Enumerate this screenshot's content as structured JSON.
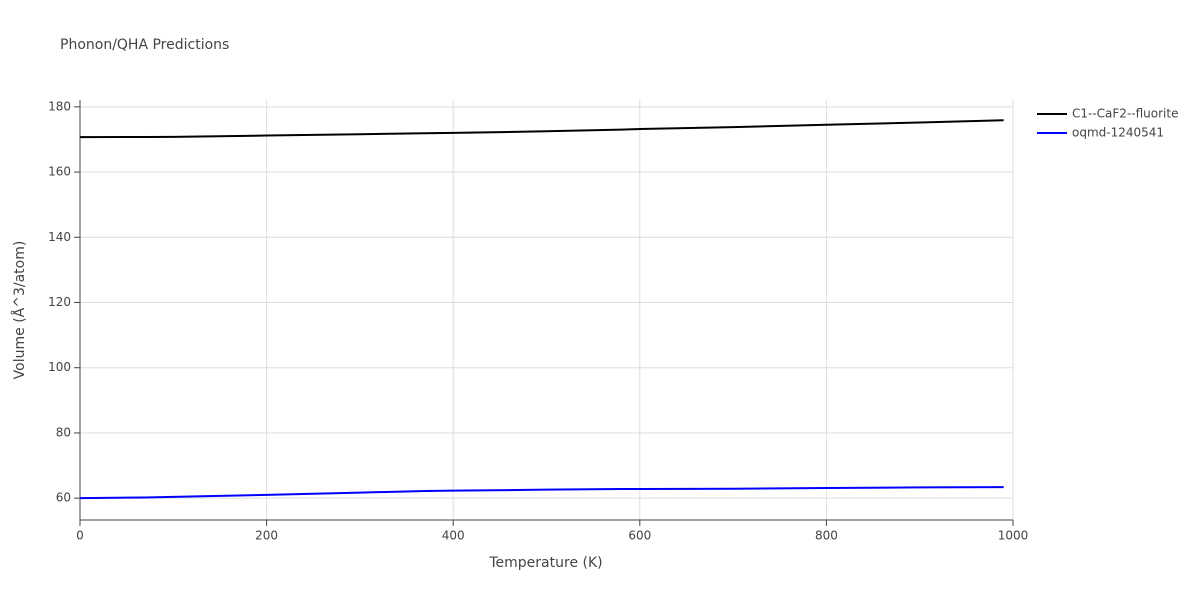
{
  "chart_data": {
    "type": "line",
    "title": "Phonon/QHA Predictions",
    "x_label": "Temperature (K)",
    "y_label": "Volume (Å^3/atom)",
    "x": [
      0,
      70,
      100,
      200,
      300,
      370,
      400,
      500,
      580,
      600,
      700,
      800,
      900,
      990
    ],
    "series": [
      {
        "name": "C1--CaF2--fluorite",
        "color": "#000000",
        "values": [
          170.7,
          170.75,
          170.8,
          171.2,
          171.6,
          171.9,
          172.0,
          172.5,
          173.0,
          173.2,
          173.8,
          174.5,
          175.2,
          175.9
        ]
      },
      {
        "name": "oqmd-1240541",
        "color": "#0000ff",
        "values": [
          60.0,
          60.2,
          60.4,
          61.0,
          61.7,
          62.2,
          62.3,
          62.6,
          62.8,
          62.8,
          62.9,
          63.1,
          63.3,
          63.4
        ]
      }
    ],
    "xlim": [
      0,
      1000
    ],
    "xticks": [
      0,
      200,
      400,
      600,
      800,
      1000
    ],
    "ylim": [
      53.3,
      182.1
    ],
    "yticks": [
      60,
      80,
      100,
      120,
      140,
      160,
      180
    ],
    "grid": true,
    "legend": "outside-right"
  }
}
